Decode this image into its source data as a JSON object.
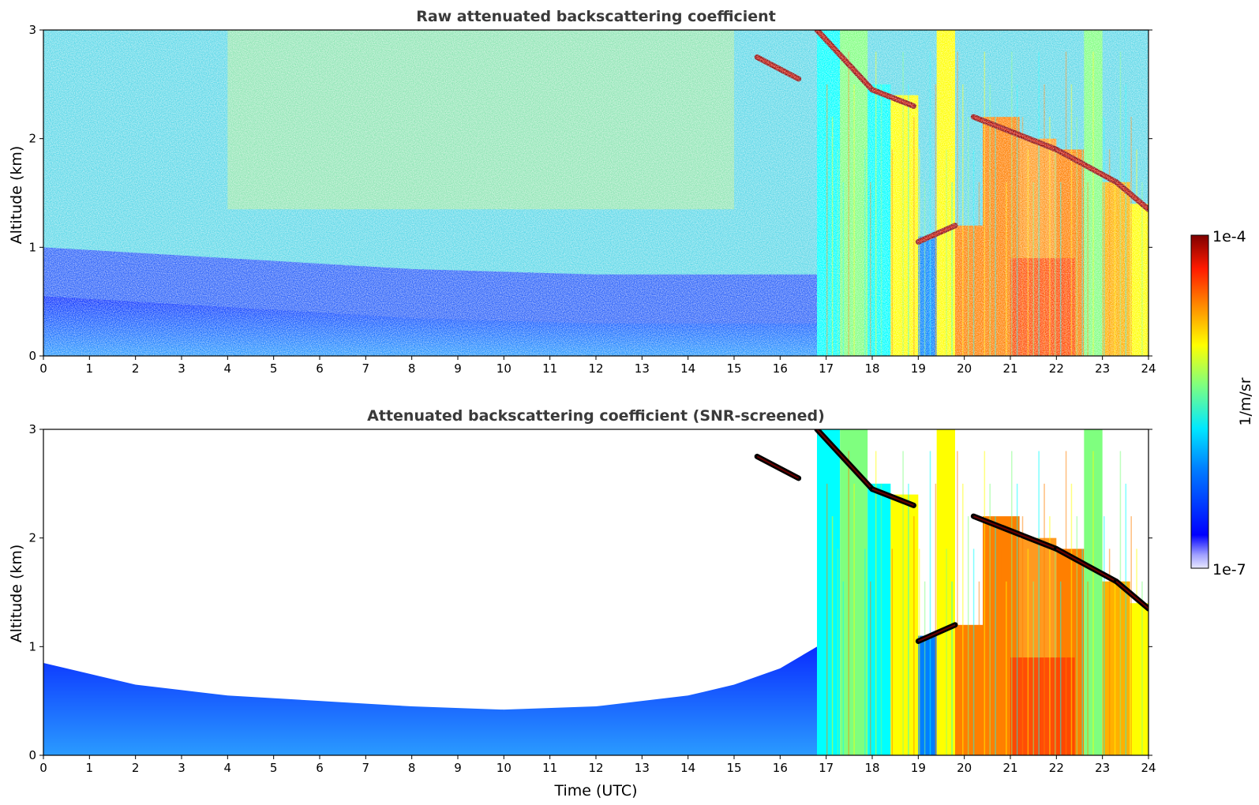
{
  "chart_data": [
    {
      "type": "heatmap",
      "title": "Raw attenuated backscattering coefficient",
      "xlabel": "",
      "ylabel": "Altitude (km)",
      "xlim": [
        0,
        24
      ],
      "ylim": [
        0,
        3
      ],
      "xticks": [
        "0",
        "1",
        "2",
        "3",
        "4",
        "5",
        "6",
        "7",
        "8",
        "9",
        "10",
        "11",
        "12",
        "13",
        "14",
        "15",
        "16",
        "17",
        "18",
        "19",
        "20",
        "21",
        "22",
        "23",
        "24"
      ],
      "yticks": [
        "0",
        "1",
        "2",
        "3"
      ],
      "colorscale": "jet",
      "screening": "none",
      "cloud_layers_km": [
        {
          "x": [
            15.5,
            16.4
          ],
          "y": [
            2.75,
            2.55
          ]
        },
        {
          "x": [
            16.8,
            18.0
          ],
          "y": [
            3.0,
            2.45
          ]
        },
        {
          "x": [
            18.0,
            18.9
          ],
          "y": [
            2.45,
            2.3
          ]
        },
        {
          "x": [
            19.0,
            19.8
          ],
          "y": [
            1.05,
            1.2
          ]
        },
        {
          "x": [
            20.2,
            22.0
          ],
          "y": [
            2.2,
            1.9
          ]
        },
        {
          "x": [
            22.0,
            23.3
          ],
          "y": [
            1.9,
            1.6
          ]
        },
        {
          "x": [
            23.3,
            24.0
          ],
          "y": [
            1.6,
            1.35
          ]
        }
      ],
      "boundary_layer_top_km": {
        "x": [
          0,
          4,
          8,
          12,
          16,
          16.8
        ],
        "y": [
          0.55,
          0.45,
          0.35,
          0.3,
          0.3,
          0.3
        ]
      }
    },
    {
      "type": "heatmap",
      "title": "Attenuated backscattering coefficient (SNR-screened)",
      "xlabel": "Time (UTC)",
      "ylabel": "Altitude (km)",
      "xlim": [
        0,
        24
      ],
      "ylim": [
        0,
        3
      ],
      "xticks": [
        "0",
        "1",
        "2",
        "3",
        "4",
        "5",
        "6",
        "7",
        "8",
        "9",
        "10",
        "11",
        "12",
        "13",
        "14",
        "15",
        "16",
        "17",
        "18",
        "19",
        "20",
        "21",
        "22",
        "23",
        "24"
      ],
      "yticks": [
        "0",
        "1",
        "2",
        "3"
      ],
      "colorscale": "jet",
      "screening": "SNR",
      "aerosol_top_km": {
        "x": [
          0,
          1,
          2,
          3,
          4,
          6,
          8,
          10,
          12,
          14,
          15,
          16,
          16.8
        ],
        "y": [
          0.85,
          0.75,
          0.65,
          0.6,
          0.55,
          0.5,
          0.45,
          0.42,
          0.45,
          0.55,
          0.65,
          0.8,
          1.0
        ]
      }
    }
  ],
  "colorbar": {
    "label": "1/m/sr",
    "max_label": "1e-4",
    "min_label": "1e-7",
    "scale": "log",
    "range": [
      1e-07,
      0.0001
    ]
  },
  "colors": {
    "jet": [
      "#00007f",
      "#0000ff",
      "#007fff",
      "#00ffff",
      "#7fff7f",
      "#ffff00",
      "#ff7f00",
      "#ff0000",
      "#7f0000"
    ],
    "title_text": "#3a3a3a"
  }
}
